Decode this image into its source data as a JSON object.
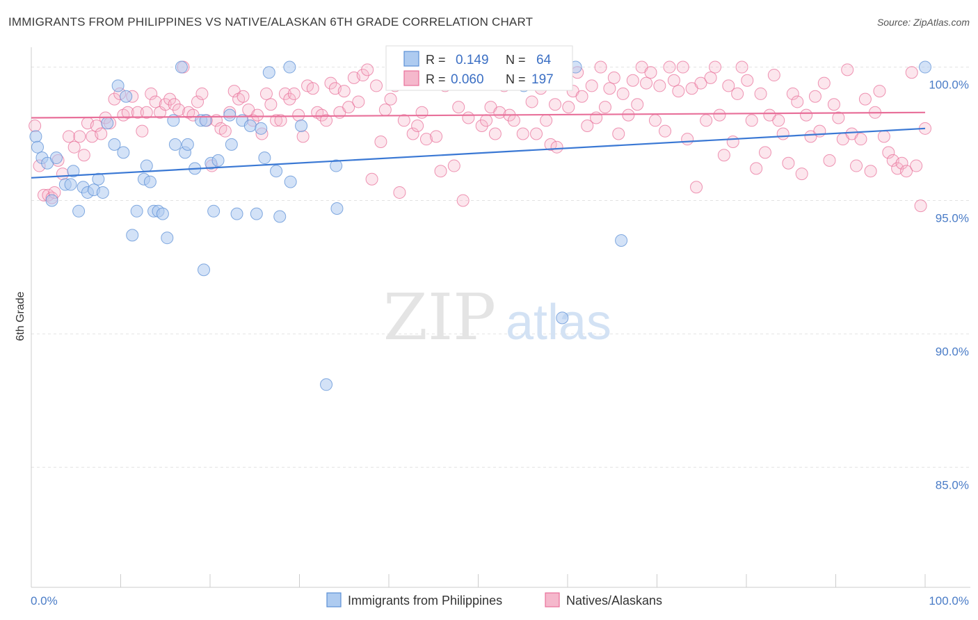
{
  "title": "IMMIGRANTS FROM PHILIPPINES VS NATIVE/ALASKAN 6TH GRADE CORRELATION CHART",
  "source": "Source: ZipAtlas.com",
  "watermark": {
    "zip": "ZIP",
    "atlas": "atlas"
  },
  "colors": {
    "blue": "#5b8fd6",
    "blue_fill": "#aecbf0",
    "pink": "#e8709a",
    "pink_fill": "#f5b8cc",
    "tick_text": "#4a7cc7",
    "grid": "#dddddd"
  },
  "legend_top": {
    "rows": [
      {
        "r_label": "R =",
        "r_value": "0.149",
        "n_label": "N =",
        "n_value": "64"
      },
      {
        "r_label": "R =",
        "r_value": "0.060",
        "n_label": "N =",
        "n_value": "197"
      }
    ]
  },
  "chart_data": {
    "type": "scatter",
    "title": "IMMIGRANTS FROM PHILIPPINES VS NATIVE/ALASKAN 6TH GRADE CORRELATION CHART",
    "xlabel": "",
    "ylabel": "6th Grade",
    "xlim": [
      0,
      100
    ],
    "ylim": [
      80.5,
      100.9
    ],
    "x_tick_labels": [
      "0.0%",
      "100.0%"
    ],
    "y_ticks": [
      85,
      90,
      95,
      100
    ],
    "y_tick_labels": [
      "85.0%",
      "90.0%",
      "95.0%",
      "100.0%"
    ],
    "grid": true,
    "legend_position": "bottom",
    "series": [
      {
        "name": "Immigrants from Philippines",
        "color": "#5b8fd6",
        "trend": {
          "x": [
            0,
            100
          ],
          "y": [
            95.85,
            97.7
          ]
        },
        "points": [
          [
            0.5,
            97.4
          ],
          [
            0.7,
            97.0
          ],
          [
            1.2,
            96.6
          ],
          [
            1.8,
            96.4
          ],
          [
            2.3,
            95.0
          ],
          [
            2.8,
            96.6
          ],
          [
            3.8,
            95.6
          ],
          [
            4.4,
            95.6
          ],
          [
            4.7,
            96.1
          ],
          [
            5.3,
            94.6
          ],
          [
            5.8,
            95.5
          ],
          [
            6.3,
            95.3
          ],
          [
            7.0,
            95.4
          ],
          [
            7.5,
            95.8
          ],
          [
            8.0,
            95.3
          ],
          [
            8.5,
            97.9
          ],
          [
            9.3,
            97.1
          ],
          [
            9.7,
            99.3
          ],
          [
            10.3,
            96.8
          ],
          [
            10.6,
            98.9
          ],
          [
            11.3,
            93.7
          ],
          [
            11.8,
            94.6
          ],
          [
            12.6,
            95.8
          ],
          [
            12.9,
            96.3
          ],
          [
            13.3,
            95.7
          ],
          [
            13.7,
            94.6
          ],
          [
            14.2,
            94.6
          ],
          [
            14.7,
            94.5
          ],
          [
            15.2,
            93.6
          ],
          [
            15.9,
            98.0
          ],
          [
            16.1,
            97.1
          ],
          [
            16.8,
            100.0
          ],
          [
            17.2,
            96.8
          ],
          [
            17.5,
            97.1
          ],
          [
            18.3,
            96.2
          ],
          [
            19.0,
            98.0
          ],
          [
            19.3,
            92.4
          ],
          [
            19.5,
            98.0
          ],
          [
            20.1,
            96.4
          ],
          [
            20.4,
            94.6
          ],
          [
            20.9,
            96.5
          ],
          [
            22.2,
            98.2
          ],
          [
            22.4,
            97.1
          ],
          [
            23.0,
            94.5
          ],
          [
            23.6,
            98.0
          ],
          [
            24.5,
            97.8
          ],
          [
            25.2,
            94.5
          ],
          [
            25.7,
            97.7
          ],
          [
            26.1,
            96.6
          ],
          [
            26.6,
            99.8
          ],
          [
            27.4,
            96.1
          ],
          [
            27.8,
            94.4
          ],
          [
            28.9,
            100.0
          ],
          [
            29.0,
            95.7
          ],
          [
            30.2,
            97.8
          ],
          [
            34.1,
            96.3
          ],
          [
            34.2,
            94.7
          ],
          [
            33.0,
            88.1
          ],
          [
            47.3,
            100.0
          ],
          [
            55.1,
            99.3
          ],
          [
            59.4,
            90.6
          ],
          [
            60.9,
            100.0
          ],
          [
            66.0,
            93.5
          ],
          [
            100.0,
            100.0
          ]
        ]
      },
      {
        "name": "Natives/Alaskans",
        "color": "#e8709a",
        "trend": {
          "x": [
            0,
            100
          ],
          "y": [
            98.1,
            98.3
          ]
        },
        "points": [
          [
            0.4,
            97.8
          ],
          [
            0.9,
            96.3
          ],
          [
            1.4,
            95.2
          ],
          [
            1.9,
            95.2
          ],
          [
            2.3,
            95.1
          ],
          [
            2.6,
            95.3
          ],
          [
            3.0,
            96.5
          ],
          [
            3.5,
            96.0
          ],
          [
            4.2,
            97.4
          ],
          [
            4.8,
            97.0
          ],
          [
            5.4,
            97.4
          ],
          [
            5.9,
            96.7
          ],
          [
            6.3,
            97.9
          ],
          [
            6.8,
            97.4
          ],
          [
            7.3,
            97.8
          ],
          [
            7.8,
            97.5
          ],
          [
            8.3,
            98.1
          ],
          [
            8.8,
            97.9
          ],
          [
            9.3,
            98.8
          ],
          [
            9.9,
            99.0
          ],
          [
            10.3,
            98.2
          ],
          [
            10.8,
            98.3
          ],
          [
            11.3,
            98.9
          ],
          [
            11.9,
            98.3
          ],
          [
            12.4,
            97.6
          ],
          [
            12.9,
            98.3
          ],
          [
            13.4,
            99.0
          ],
          [
            13.9,
            98.7
          ],
          [
            14.4,
            98.3
          ],
          [
            15.0,
            98.6
          ],
          [
            15.5,
            98.8
          ],
          [
            16.0,
            98.6
          ],
          [
            16.5,
            98.4
          ],
          [
            17.0,
            100.0
          ],
          [
            17.6,
            98.3
          ],
          [
            18.1,
            98.2
          ],
          [
            18.6,
            98.7
          ],
          [
            19.1,
            99.0
          ],
          [
            19.6,
            98.0
          ],
          [
            20.2,
            96.3
          ],
          [
            20.7,
            98.0
          ],
          [
            21.2,
            97.7
          ],
          [
            21.7,
            97.6
          ],
          [
            22.2,
            98.3
          ],
          [
            22.7,
            99.1
          ],
          [
            23.2,
            98.8
          ],
          [
            23.7,
            98.9
          ],
          [
            24.3,
            98.4
          ],
          [
            24.8,
            98.0
          ],
          [
            25.3,
            98.2
          ],
          [
            25.8,
            97.5
          ],
          [
            26.3,
            99.0
          ],
          [
            26.8,
            98.6
          ],
          [
            27.4,
            98.0
          ],
          [
            27.9,
            98.0
          ],
          [
            28.4,
            99.0
          ],
          [
            28.9,
            98.8
          ],
          [
            29.4,
            99.0
          ],
          [
            29.9,
            98.2
          ],
          [
            30.4,
            97.4
          ],
          [
            30.9,
            99.3
          ],
          [
            31.5,
            99.2
          ],
          [
            32.0,
            98.3
          ],
          [
            32.5,
            98.2
          ],
          [
            33.0,
            98.0
          ],
          [
            33.5,
            99.4
          ],
          [
            34.0,
            99.2
          ],
          [
            34.5,
            98.3
          ],
          [
            35.0,
            99.1
          ],
          [
            35.5,
            98.5
          ],
          [
            36.1,
            99.6
          ],
          [
            36.6,
            98.7
          ],
          [
            37.1,
            99.7
          ],
          [
            37.6,
            99.9
          ],
          [
            38.1,
            95.8
          ],
          [
            38.6,
            99.3
          ],
          [
            39.1,
            97.2
          ],
          [
            39.6,
            98.4
          ],
          [
            40.2,
            98.8
          ],
          [
            40.7,
            99.3
          ],
          [
            41.2,
            95.3
          ],
          [
            41.7,
            98.0
          ],
          [
            42.2,
            99.6
          ],
          [
            42.7,
            97.5
          ],
          [
            43.2,
            97.8
          ],
          [
            43.7,
            98.3
          ],
          [
            44.2,
            97.3
          ],
          [
            44.8,
            99.7
          ],
          [
            45.3,
            97.4
          ],
          [
            45.8,
            96.1
          ],
          [
            46.3,
            99.3
          ],
          [
            46.8,
            100.0
          ],
          [
            47.3,
            96.3
          ],
          [
            47.8,
            98.5
          ],
          [
            48.3,
            95.0
          ],
          [
            48.9,
            98.1
          ],
          [
            49.4,
            99.4
          ],
          [
            49.9,
            100.0
          ],
          [
            50.4,
            97.8
          ],
          [
            50.9,
            98.0
          ],
          [
            51.4,
            98.5
          ],
          [
            51.9,
            97.5
          ],
          [
            52.4,
            98.3
          ],
          [
            52.9,
            99.3
          ],
          [
            53.5,
            98.2
          ],
          [
            54.0,
            98.0
          ],
          [
            54.5,
            100.0
          ],
          [
            55.0,
            97.5
          ],
          [
            55.5,
            99.6
          ],
          [
            56.0,
            98.7
          ],
          [
            56.5,
            97.5
          ],
          [
            57.0,
            99.2
          ],
          [
            57.6,
            98.0
          ],
          [
            58.1,
            97.1
          ],
          [
            58.6,
            98.6
          ],
          [
            59.1,
            99.7
          ],
          [
            59.6,
            99.4
          ],
          [
            60.1,
            98.5
          ],
          [
            60.6,
            99.1
          ],
          [
            61.1,
            99.8
          ],
          [
            61.6,
            98.9
          ],
          [
            62.2,
            97.8
          ],
          [
            62.7,
            99.3
          ],
          [
            63.2,
            98.1
          ],
          [
            63.7,
            100.0
          ],
          [
            64.2,
            98.5
          ],
          [
            64.7,
            99.2
          ],
          [
            65.2,
            99.6
          ],
          [
            65.7,
            97.5
          ],
          [
            66.2,
            99.0
          ],
          [
            66.8,
            98.2
          ],
          [
            67.3,
            99.5
          ],
          [
            67.8,
            98.6
          ],
          [
            68.3,
            100.0
          ],
          [
            68.8,
            99.4
          ],
          [
            69.3,
            99.8
          ],
          [
            69.8,
            98.0
          ],
          [
            70.3,
            99.3
          ],
          [
            70.9,
            97.6
          ],
          [
            71.4,
            100.0
          ],
          [
            71.9,
            99.5
          ],
          [
            72.4,
            99.1
          ],
          [
            72.9,
            100.0
          ],
          [
            73.4,
            97.3
          ],
          [
            73.9,
            99.2
          ],
          [
            74.4,
            95.5
          ],
          [
            74.9,
            99.4
          ],
          [
            75.5,
            98.0
          ],
          [
            76.0,
            99.6
          ],
          [
            76.5,
            100.0
          ],
          [
            77.0,
            98.2
          ],
          [
            77.5,
            96.7
          ],
          [
            78.0,
            99.3
          ],
          [
            78.5,
            97.2
          ],
          [
            79.0,
            99.0
          ],
          [
            79.5,
            100.0
          ],
          [
            80.1,
            99.5
          ],
          [
            80.6,
            98.0
          ],
          [
            81.1,
            96.2
          ],
          [
            81.6,
            99.0
          ],
          [
            82.1,
            96.8
          ],
          [
            82.6,
            98.2
          ],
          [
            83.1,
            99.7
          ],
          [
            83.6,
            98.0
          ],
          [
            84.1,
            97.5
          ],
          [
            84.7,
            96.4
          ],
          [
            85.2,
            99.0
          ],
          [
            85.7,
            98.7
          ],
          [
            86.2,
            96.0
          ],
          [
            86.7,
            98.2
          ],
          [
            87.2,
            97.4
          ],
          [
            87.7,
            98.9
          ],
          [
            88.2,
            97.6
          ],
          [
            88.7,
            99.4
          ],
          [
            89.3,
            96.5
          ],
          [
            89.8,
            98.6
          ],
          [
            90.3,
            98.1
          ],
          [
            90.8,
            97.3
          ],
          [
            91.3,
            99.9
          ],
          [
            91.8,
            97.5
          ],
          [
            92.3,
            96.3
          ],
          [
            92.8,
            97.3
          ],
          [
            93.3,
            98.8
          ],
          [
            93.9,
            96.1
          ],
          [
            94.4,
            98.3
          ],
          [
            94.9,
            99.1
          ],
          [
            95.4,
            97.4
          ],
          [
            95.9,
            96.8
          ],
          [
            96.4,
            96.5
          ],
          [
            96.9,
            96.2
          ],
          [
            97.4,
            96.4
          ],
          [
            97.9,
            96.1
          ],
          [
            98.5,
            99.8
          ],
          [
            99.0,
            96.3
          ],
          [
            99.5,
            94.8
          ],
          [
            100.0,
            97.7
          ],
          [
            58.8,
            97.0
          ]
        ]
      }
    ]
  },
  "legend_bottom": {
    "items": [
      {
        "label": "Immigrants from Philippines"
      },
      {
        "label": "Natives/Alaskans"
      }
    ]
  }
}
